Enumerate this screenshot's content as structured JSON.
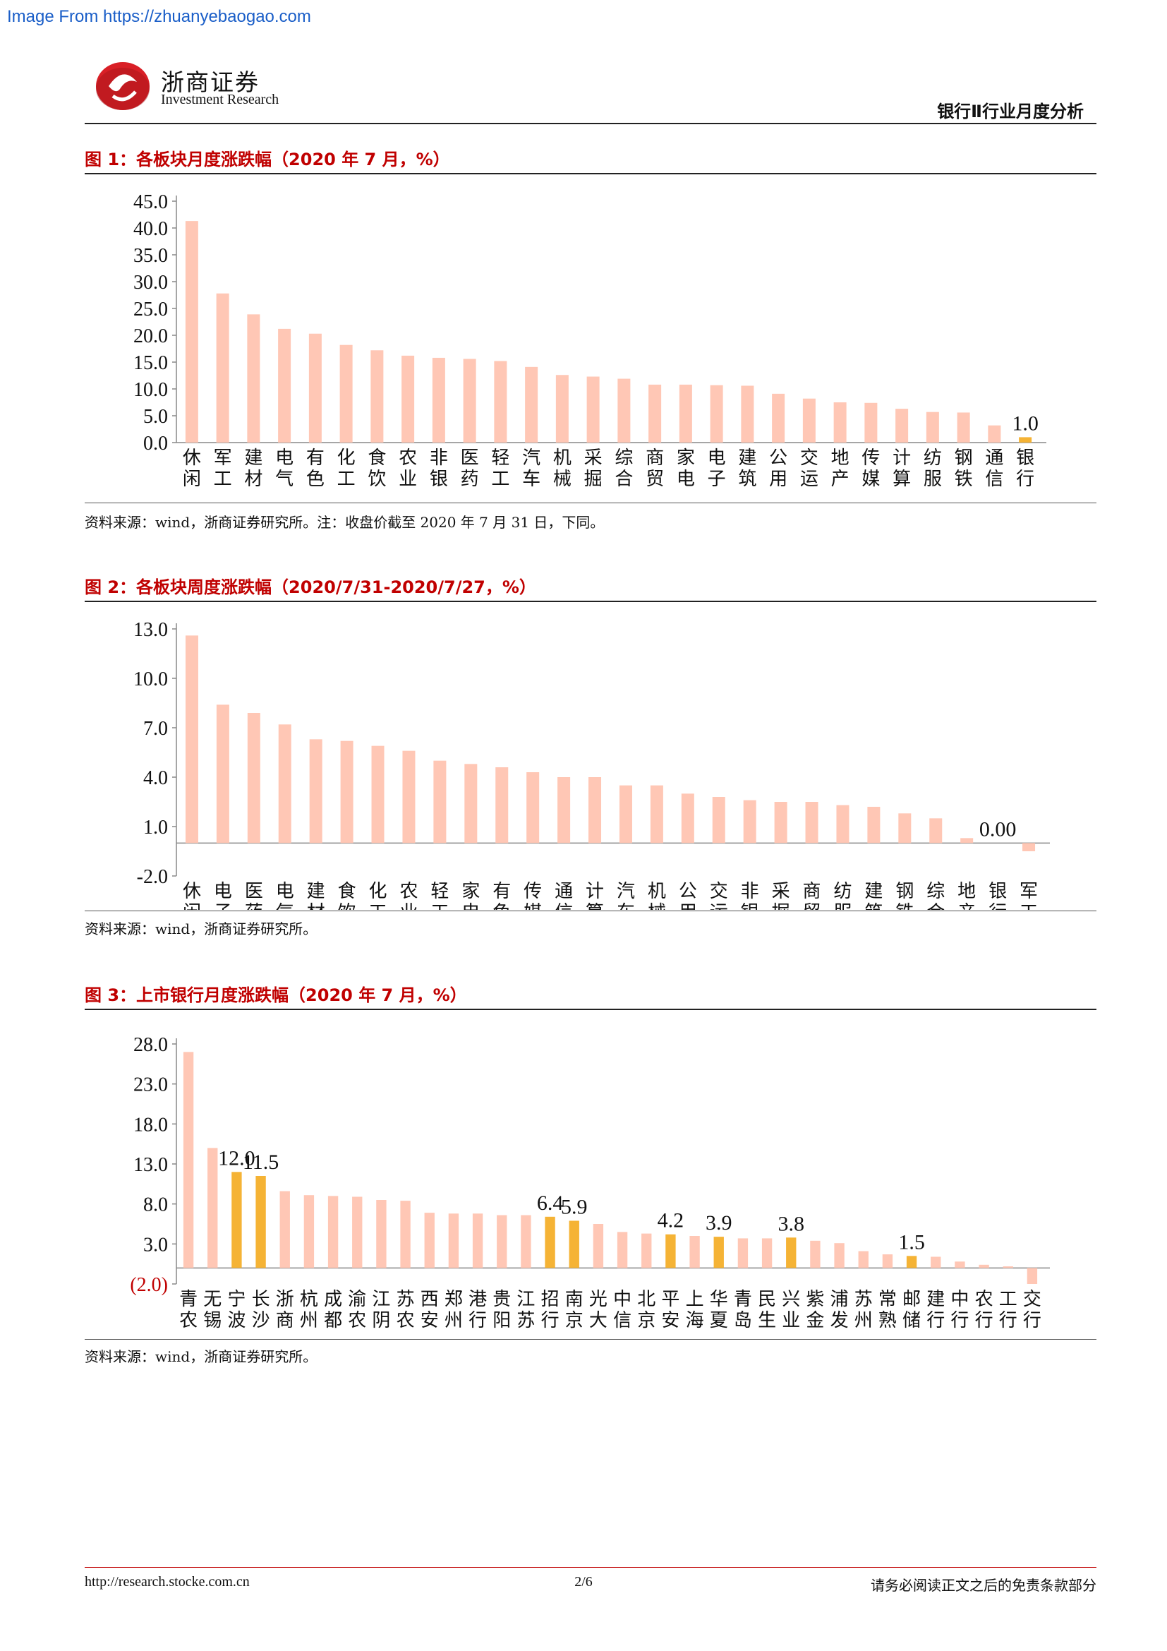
{
  "watermark": "Image From https://zhuanyebaogao.com",
  "header": {
    "logo_cn": "浙商证券",
    "logo_en": "Investment Research",
    "section": "银行Ⅱ行业月度分析"
  },
  "colors": {
    "bar": "#ffc7b5",
    "highlight": "#f5b335",
    "title": "#c00000",
    "negative_label": "#c00000"
  },
  "figures": [
    {
      "title": "图 1：各板块月度涨跌幅（2020 年 7 月，%）",
      "source": "资料来源：wind，浙商证券研究所。注：收盘价截至 2020 年 7 月 31 日，下同。"
    },
    {
      "title": "图 2：各板块周度涨跌幅（2020/7/31-2020/7/27，%）",
      "source": "资料来源：wind，浙商证券研究所。"
    },
    {
      "title": "图 3：上市银行月度涨跌幅（2020 年 7 月，%）",
      "source": "资料来源：wind，浙商证券研究所。"
    }
  ],
  "chart_data": [
    {
      "type": "bar",
      "categories": [
        "休闲",
        "军工",
        "建材",
        "电气",
        "有色",
        "化工",
        "食饮",
        "农业",
        "非银",
        "医药",
        "轻工",
        "汽车",
        "机械",
        "采掘",
        "综合",
        "商贸",
        "家电",
        "电子",
        "建筑",
        "公用",
        "交运",
        "地产",
        "传媒",
        "计算",
        "纺服",
        "钢铁",
        "通信",
        "银行"
      ],
      "values": [
        41.3,
        27.8,
        23.9,
        21.2,
        20.3,
        18.2,
        17.2,
        16.2,
        15.8,
        15.6,
        15.2,
        14.1,
        12.6,
        12.3,
        11.9,
        10.8,
        10.8,
        10.7,
        10.6,
        9.1,
        8.2,
        7.5,
        7.4,
        6.3,
        5.7,
        5.6,
        3.2,
        1.0
      ],
      "highlight": [
        "银行"
      ],
      "data_labels": {
        "银行": "1.0"
      },
      "ylim": [
        0,
        45
      ],
      "yticks": [
        "45.0",
        "40.0",
        "35.0",
        "30.0",
        "25.0",
        "20.0",
        "15.0",
        "10.0",
        "5.0",
        "0.0"
      ]
    },
    {
      "type": "bar",
      "categories": [
        "休闲",
        "电子",
        "医药",
        "电气",
        "建材",
        "食饮",
        "化工",
        "农业",
        "轻工",
        "家电",
        "有色",
        "传媒",
        "通信",
        "计算",
        "汽车",
        "机械",
        "公用",
        "交运",
        "非银",
        "采掘",
        "商贸",
        "纺服",
        "建筑",
        "钢铁",
        "综合",
        "地产",
        "银行",
        "军工"
      ],
      "values": [
        12.6,
        8.4,
        7.9,
        7.2,
        6.3,
        6.2,
        5.9,
        5.6,
        5.0,
        4.8,
        4.6,
        4.3,
        4.0,
        4.0,
        3.5,
        3.5,
        3.0,
        2.8,
        2.6,
        2.5,
        2.5,
        2.3,
        2.2,
        1.8,
        1.5,
        0.3,
        0.0,
        -0.5
      ],
      "highlight": [],
      "data_labels": {
        "银行": "0.00"
      },
      "ylim": [
        -2,
        13
      ],
      "yticks": [
        "13.0",
        "10.0",
        "7.0",
        "4.0",
        "1.0",
        "-2.0"
      ]
    },
    {
      "type": "bar",
      "categories": [
        "青农",
        "无锡",
        "宁波",
        "长沙",
        "浙商",
        "杭州",
        "成都",
        "渝农",
        "江阴",
        "苏农",
        "西安",
        "郑州",
        "港行",
        "贵阳",
        "江苏",
        "招行",
        "南京",
        "光大",
        "中信",
        "北京",
        "平安",
        "上海",
        "华夏",
        "青岛",
        "民生",
        "兴业",
        "紫金",
        "浦发",
        "苏州",
        "常熟",
        "邮储",
        "建行",
        "中行",
        "农行",
        "工行",
        "交行"
      ],
      "values": [
        27.0,
        15.0,
        12.0,
        11.5,
        9.6,
        9.1,
        9.0,
        8.9,
        8.5,
        8.4,
        6.9,
        6.8,
        6.8,
        6.6,
        6.6,
        6.4,
        5.9,
        5.5,
        4.5,
        4.3,
        4.2,
        4.0,
        3.9,
        3.7,
        3.7,
        3.8,
        3.4,
        3.1,
        2.1,
        1.7,
        1.5,
        1.4,
        0.8,
        0.4,
        0.2,
        -2.0
      ],
      "highlight": [
        "宁波",
        "长沙",
        "招行",
        "南京",
        "平安",
        "华夏",
        "兴业",
        "邮储"
      ],
      "data_labels": {
        "宁波": "12.0",
        "长沙": "11.5",
        "招行": "6.4",
        "南京": "5.9",
        "平安": "4.2",
        "华夏": "3.9",
        "兴业": "3.8",
        "邮储": "1.5"
      },
      "ylim": [
        -2,
        28
      ],
      "yticks": [
        "28.0",
        "23.0",
        "18.0",
        "13.0",
        "8.0",
        "3.0",
        "(2.0)"
      ]
    }
  ],
  "footer": {
    "url": "http://research.stocke.com.cn",
    "page": "2/6",
    "disclaimer": "请务必阅读正文之后的免责条款部分"
  }
}
